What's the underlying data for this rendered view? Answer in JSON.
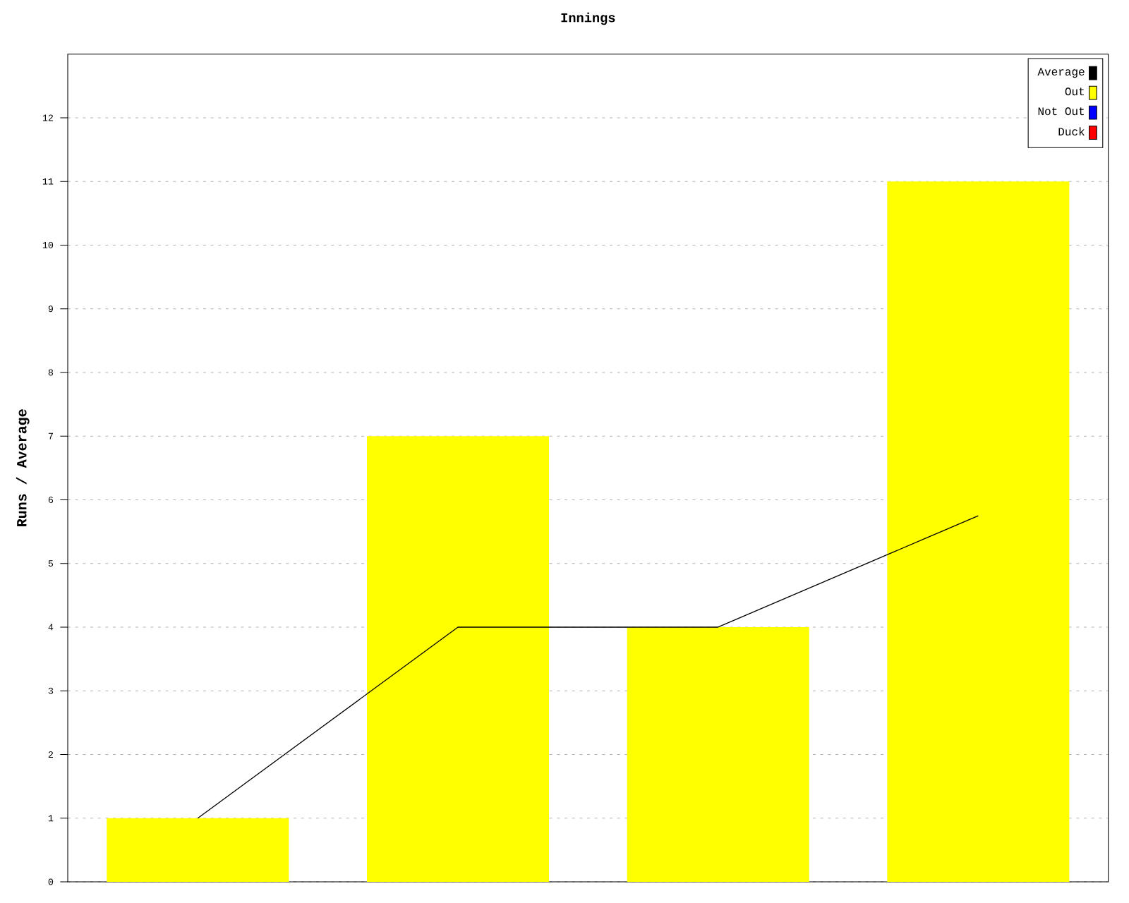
{
  "chart_data": {
    "type": "bar",
    "title": "Innings",
    "ylabel": "Runs / Average",
    "categories": [
      null,
      null,
      null,
      null
    ],
    "series": [
      {
        "name": "Average",
        "type": "line",
        "color": "#000000",
        "values": [
          1,
          4,
          4,
          5.75
        ]
      },
      {
        "name": "Out",
        "color": "#ffff00",
        "values": [
          1,
          7,
          4,
          11
        ]
      },
      {
        "name": "Not Out",
        "color": "#0000ff",
        "values": [
          null,
          null,
          null,
          null
        ]
      },
      {
        "name": "Duck",
        "color": "#ff0000",
        "values": [
          null,
          null,
          null,
          null
        ]
      }
    ],
    "ylim": [
      0,
      13
    ],
    "yticks": [
      0,
      1,
      2,
      3,
      4,
      5,
      6,
      7,
      8,
      9,
      10,
      11,
      12
    ],
    "grid": "y",
    "legend": "top right",
    "marker": "none",
    "line_style": "solid"
  }
}
